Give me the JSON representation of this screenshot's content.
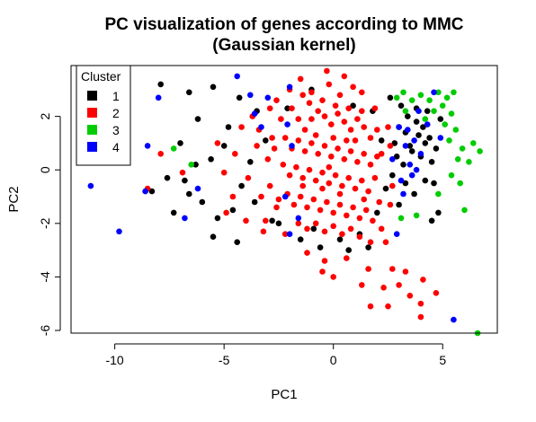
{
  "chart_data": {
    "type": "scatter",
    "title": "PC visualization of genes according to MMC",
    "subtitle": "(Gaussian kernel)",
    "xlabel": "PC1",
    "ylabel": "PC2",
    "xlim": [
      -12,
      7.5
    ],
    "ylim": [
      -6.1,
      3.9
    ],
    "x_ticks": [
      -10,
      -5,
      0,
      5
    ],
    "y_ticks": [
      -6,
      -4,
      -2,
      0,
      2
    ],
    "grid": false,
    "legend": {
      "title": "Cluster",
      "placement": "top-left"
    },
    "series": [
      {
        "name": "1",
        "color": "#000000",
        "points": [
          [
            -7.9,
            3.2
          ],
          [
            -6.6,
            2.9
          ],
          [
            -5.5,
            3.1
          ],
          [
            -4.3,
            2.7
          ],
          [
            -7.0,
            1.0
          ],
          [
            -6.3,
            0.2
          ],
          [
            -5.6,
            0.4
          ],
          [
            -4.8,
            1.6
          ],
          [
            -8.3,
            -0.8
          ],
          [
            -7.3,
            -1.6
          ],
          [
            -6.6,
            -0.9
          ],
          [
            -5.3,
            -1.8
          ],
          [
            -4.4,
            -2.7
          ],
          [
            -5.5,
            -2.5
          ],
          [
            -3.6,
            -1.2
          ],
          [
            -2.5,
            -2.0
          ],
          [
            -1.5,
            -2.6
          ],
          [
            -0.6,
            -2.9
          ],
          [
            1.2,
            -2.4
          ],
          [
            2.0,
            -1.6
          ],
          [
            2.6,
            2.7
          ],
          [
            3.0,
            1.6
          ],
          [
            3.4,
            2.0
          ],
          [
            3.8,
            1.8
          ],
          [
            4.2,
            1.0
          ],
          [
            3.6,
            0.7
          ],
          [
            4.5,
            0.3
          ],
          [
            3.2,
            0.2
          ],
          [
            3.9,
            1.3
          ],
          [
            4.3,
            2.2
          ],
          [
            4.6,
            -0.5
          ],
          [
            3.7,
            -0.9
          ],
          [
            3.0,
            -1.3
          ],
          [
            2.4,
            -0.7
          ],
          [
            4.8,
            -1.6
          ],
          [
            4.5,
            -1.9
          ],
          [
            2.8,
            1.0
          ],
          [
            3.3,
            1.4
          ],
          [
            4.0,
            0.5
          ],
          [
            4.9,
            1.9
          ],
          [
            -2.1,
            2.3
          ],
          [
            -1.0,
            3.0
          ],
          [
            0.9,
            2.4
          ],
          [
            1.8,
            2.2
          ],
          [
            2.2,
            1.1
          ],
          [
            -3.5,
            2.2
          ],
          [
            -3.1,
            1.1
          ],
          [
            -6.8,
            -0.4
          ],
          [
            -7.6,
            -0.3
          ],
          [
            -6.0,
            -1.2
          ],
          [
            3.1,
            2.4
          ],
          [
            3.5,
            0.9
          ],
          [
            4.1,
            1.6
          ],
          [
            4.4,
            1.2
          ],
          [
            3.8,
            2.3
          ],
          [
            2.9,
            0.5
          ],
          [
            2.7,
            -0.2
          ],
          [
            3.3,
            -0.5
          ],
          [
            4.7,
            0.8
          ],
          [
            4.2,
            -0.4
          ],
          [
            0.3,
            -2.6
          ],
          [
            -0.9,
            -2.2
          ],
          [
            1.6,
            -2.9
          ],
          [
            0.7,
            -3.0
          ],
          [
            -4.2,
            -0.6
          ],
          [
            -3.8,
            0.3
          ],
          [
            -5.0,
            0.9
          ],
          [
            -4.6,
            -1.5
          ],
          [
            -2.8,
            -1.9
          ],
          [
            -6.2,
            1.9
          ]
        ]
      },
      {
        "name": "2",
        "color": "#ff0000",
        "points": [
          [
            -0.3,
            3.7
          ],
          [
            0.5,
            3.5
          ],
          [
            -1.5,
            3.4
          ],
          [
            -2.0,
            3.0
          ],
          [
            1.3,
            2.9
          ],
          [
            -3.7,
            2.0
          ],
          [
            -4.2,
            1.6
          ],
          [
            -3.5,
            0.9
          ],
          [
            -4.5,
            0.6
          ],
          [
            -5.3,
            1.0
          ],
          [
            -3.9,
            -0.3
          ],
          [
            -4.6,
            -1.0
          ],
          [
            -3.1,
            -1.9
          ],
          [
            -2.2,
            -2.4
          ],
          [
            -1.2,
            -3.1
          ],
          [
            -0.4,
            -3.4
          ],
          [
            0.6,
            -3.3
          ],
          [
            1.6,
            -3.7
          ],
          [
            2.7,
            -3.7
          ],
          [
            3.3,
            -3.8
          ],
          [
            4.1,
            -4.1
          ],
          [
            4.7,
            -4.6
          ],
          [
            2.3,
            -4.4
          ],
          [
            1.7,
            -5.1
          ],
          [
            2.5,
            -5.1
          ],
          [
            4.0,
            -5.0
          ],
          [
            4.0,
            -5.5
          ],
          [
            3.5,
            -4.7
          ],
          [
            3.0,
            -4.3
          ],
          [
            1.3,
            -4.3
          ],
          [
            0.0,
            -4.0
          ],
          [
            -0.5,
            -3.8
          ],
          [
            -8.5,
            -0.7
          ],
          [
            -6.9,
            -0.1
          ],
          [
            -7.9,
            0.6
          ],
          [
            -2.6,
            2.6
          ],
          [
            -1.0,
            2.9
          ],
          [
            0.3,
            2.8
          ],
          [
            1.9,
            2.3
          ],
          [
            2.5,
            1.6
          ],
          [
            2.6,
            0.9
          ],
          [
            2.7,
            -0.6
          ],
          [
            2.6,
            -1.3
          ],
          [
            2.2,
            -2.2
          ],
          [
            1.7,
            -2.7
          ],
          [
            -2.4,
            1.9
          ],
          [
            -2.8,
            1.2
          ],
          [
            -3.0,
            0.4
          ],
          [
            -2.9,
            -0.6
          ],
          [
            -2.6,
            -1.4
          ],
          [
            -1.9,
            2.3
          ],
          [
            -1.6,
            1.9
          ],
          [
            -1.3,
            1.5
          ],
          [
            -1.0,
            1.9
          ],
          [
            -0.7,
            2.2
          ],
          [
            -0.4,
            2.0
          ],
          [
            -0.1,
            1.7
          ],
          [
            0.2,
            2.1
          ],
          [
            0.5,
            1.8
          ],
          [
            0.8,
            1.5
          ],
          [
            1.1,
            1.9
          ],
          [
            1.4,
            1.6
          ],
          [
            1.7,
            1.2
          ],
          [
            2.0,
            1.5
          ],
          [
            2.2,
            0.6
          ],
          [
            -2.2,
            1.2
          ],
          [
            -1.9,
            0.8
          ],
          [
            -1.6,
            1.1
          ],
          [
            -1.3,
            0.7
          ],
          [
            -1.0,
            1.0
          ],
          [
            -0.7,
            0.6
          ],
          [
            -0.4,
            0.9
          ],
          [
            -0.1,
            0.5
          ],
          [
            0.2,
            0.8
          ],
          [
            0.5,
            0.4
          ],
          [
            0.8,
            0.7
          ],
          [
            1.1,
            0.3
          ],
          [
            1.4,
            0.6
          ],
          [
            1.7,
            0.2
          ],
          [
            2.0,
            0.5
          ],
          [
            -2.3,
            0.2
          ],
          [
            -2.0,
            -0.2
          ],
          [
            -1.7,
            0.1
          ],
          [
            -1.4,
            -0.3
          ],
          [
            -1.1,
            0.0
          ],
          [
            -0.8,
            -0.4
          ],
          [
            -0.5,
            -0.1
          ],
          [
            -0.2,
            -0.5
          ],
          [
            0.1,
            -0.2
          ],
          [
            0.4,
            -0.6
          ],
          [
            0.7,
            -0.3
          ],
          [
            1.0,
            -0.7
          ],
          [
            1.3,
            -0.4
          ],
          [
            1.6,
            -0.8
          ],
          [
            1.9,
            -0.3
          ],
          [
            -2.1,
            -0.9
          ],
          [
            -1.8,
            -1.3
          ],
          [
            -1.5,
            -1.0
          ],
          [
            -1.2,
            -1.4
          ],
          [
            -0.9,
            -1.1
          ],
          [
            -0.6,
            -1.5
          ],
          [
            -0.3,
            -1.2
          ],
          [
            0.0,
            -1.6
          ],
          [
            0.3,
            -1.3
          ],
          [
            0.6,
            -1.7
          ],
          [
            0.9,
            -1.4
          ],
          [
            1.2,
            -1.8
          ],
          [
            1.5,
            -1.5
          ],
          [
            1.8,
            -1.9
          ],
          [
            2.1,
            -1.2
          ],
          [
            -1.6,
            -2.0
          ],
          [
            -1.2,
            -2.2
          ],
          [
            -0.8,
            -2.0
          ],
          [
            -0.4,
            -2.3
          ],
          [
            0.0,
            -2.1
          ],
          [
            0.4,
            -2.4
          ],
          [
            0.8,
            -2.2
          ],
          [
            1.2,
            -2.5
          ],
          [
            -2.5,
            -1.1
          ],
          [
            -2.7,
            0.8
          ],
          [
            -1.1,
            2.5
          ],
          [
            -0.5,
            2.6
          ],
          [
            0.1,
            2.4
          ],
          [
            0.7,
            2.3
          ],
          [
            1.3,
            2.2
          ],
          [
            -3.3,
            -1.0
          ],
          [
            -3.4,
            1.5
          ],
          [
            -2.9,
            2.3
          ],
          [
            -0.2,
            3.2
          ],
          [
            0.9,
            3.1
          ],
          [
            -3.2,
            -2.3
          ],
          [
            -4.0,
            -1.9
          ],
          [
            -5.0,
            -0.1
          ],
          [
            -4.9,
            -1.6
          ],
          [
            2.4,
            -2.7
          ],
          [
            -1.4,
            2.8
          ],
          [
            0.0,
            1.2
          ],
          [
            -0.2,
            0.1
          ],
          [
            0.3,
            -0.9
          ],
          [
            -0.5,
            -0.7
          ],
          [
            1.0,
            1.1
          ],
          [
            -1.4,
            -0.6
          ],
          [
            1.4,
            -1.1
          ],
          [
            -0.8,
            1.3
          ],
          [
            0.6,
            1.1
          ]
        ]
      },
      {
        "name": "3",
        "color": "#00cc00",
        "points": [
          [
            2.9,
            2.7
          ],
          [
            3.2,
            2.9
          ],
          [
            3.6,
            2.6
          ],
          [
            4.0,
            2.8
          ],
          [
            4.4,
            2.6
          ],
          [
            4.8,
            2.9
          ],
          [
            5.2,
            2.7
          ],
          [
            5.5,
            2.9
          ],
          [
            5.0,
            2.4
          ],
          [
            4.6,
            2.2
          ],
          [
            5.4,
            2.1
          ],
          [
            5.1,
            1.7
          ],
          [
            5.6,
            1.5
          ],
          [
            5.9,
            0.8
          ],
          [
            6.4,
            1.0
          ],
          [
            6.7,
            0.7
          ],
          [
            6.2,
            0.3
          ],
          [
            5.7,
            0.4
          ],
          [
            5.4,
            -0.2
          ],
          [
            5.8,
            -0.5
          ],
          [
            6.0,
            -1.5
          ],
          [
            4.8,
            -0.9
          ],
          [
            3.8,
            -1.7
          ],
          [
            3.1,
            -1.8
          ],
          [
            -7.3,
            0.8
          ],
          [
            -6.5,
            0.2
          ],
          [
            6.6,
            -6.1
          ],
          [
            4.2,
            1.9
          ],
          [
            3.3,
            2.2
          ],
          [
            5.3,
            1.1
          ]
        ]
      },
      {
        "name": "4",
        "color": "#0000ff",
        "points": [
          [
            -11.1,
            -0.6
          ],
          [
            -9.8,
            -2.3
          ],
          [
            -8.5,
            0.9
          ],
          [
            -8.0,
            2.7
          ],
          [
            -8.6,
            -0.8
          ],
          [
            -6.8,
            -1.8
          ],
          [
            -6.2,
            -0.7
          ],
          [
            -4.4,
            3.5
          ],
          [
            -3.8,
            2.8
          ],
          [
            -3.6,
            2.1
          ],
          [
            -3.3,
            1.6
          ],
          [
            -2.0,
            3.1
          ],
          [
            -2.1,
            1.7
          ],
          [
            -1.9,
            0.9
          ],
          [
            -2.2,
            -1.0
          ],
          [
            -2.0,
            -2.4
          ],
          [
            -1.6,
            -1.8
          ],
          [
            3.0,
            1.6
          ],
          [
            3.3,
            0.9
          ],
          [
            3.5,
            0.2
          ],
          [
            3.7,
            1.1
          ],
          [
            3.1,
            -0.4
          ],
          [
            3.6,
            -0.2
          ],
          [
            4.0,
            0.6
          ],
          [
            4.3,
            1.7
          ],
          [
            3.4,
            1.5
          ],
          [
            3.8,
            0.0
          ],
          [
            2.7,
            0.4
          ],
          [
            3.2,
            -0.9
          ],
          [
            4.6,
            2.9
          ],
          [
            4.9,
            1.2
          ],
          [
            3.9,
            2.2
          ],
          [
            5.5,
            -5.6
          ],
          [
            2.9,
            -2.4
          ],
          [
            -3.0,
            2.7
          ]
        ]
      }
    ]
  }
}
